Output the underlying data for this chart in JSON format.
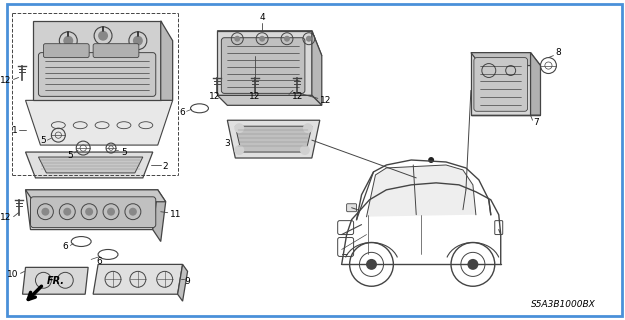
{
  "background_color": "#ffffff",
  "border_color": "#4a90d9",
  "border_width": 2,
  "diagram_code_text": "S5A3B1000BX",
  "figsize": [
    6.25,
    3.2
  ],
  "dpi": 100,
  "gray": "#444444",
  "light_gray": "#888888",
  "dark_gray": "#222222",
  "part_label_fs": 6.5
}
